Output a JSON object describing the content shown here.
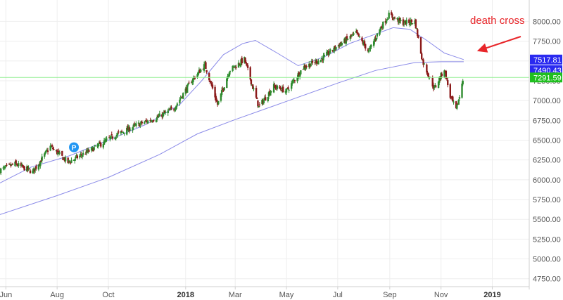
{
  "chart_data": {
    "type": "candlestick",
    "title": "",
    "xlabel": "",
    "ylabel": "",
    "x_range": [
      "2017-05-25",
      "2019-02-14"
    ],
    "ylim": [
      4650,
      8270
    ],
    "y_ticks": [
      4750,
      5000,
      5250,
      5500,
      5750,
      6000,
      6250,
      6500,
      6750,
      7000,
      7250,
      7500,
      7750,
      8000
    ],
    "y_tick_labels": [
      "4750.00",
      "5000.00",
      "5250.00",
      "5500.00",
      "5750.00",
      "6000.00",
      "6250.00",
      "6500.00",
      "6750.00",
      "7000.00",
      "7250.00",
      "7500.00",
      "7750.00",
      "8000.00"
    ],
    "x_ticks": [
      {
        "date": "2017-06-01",
        "label": "Jun",
        "bold": false
      },
      {
        "date": "2017-08-01",
        "label": "Aug",
        "bold": false
      },
      {
        "date": "2017-10-01",
        "label": "Oct",
        "bold": false
      },
      {
        "date": "2018-01-01",
        "label": "2018",
        "bold": true
      },
      {
        "date": "2018-03-01",
        "label": "Mar",
        "bold": false
      },
      {
        "date": "2018-05-01",
        "label": "May",
        "bold": false
      },
      {
        "date": "2018-07-01",
        "label": "Jul",
        "bold": false
      },
      {
        "date": "2018-09-01",
        "label": "Sep",
        "bold": false
      },
      {
        "date": "2018-11-01",
        "label": "Nov",
        "bold": false
      },
      {
        "date": "2019-01-01",
        "label": "2019",
        "bold": true
      }
    ],
    "price_anchors": [
      [
        "2017-05-25",
        6120
      ],
      [
        "2017-06-12",
        6200
      ],
      [
        "2017-07-03",
        6100
      ],
      [
        "2017-07-24",
        6420
      ],
      [
        "2017-08-14",
        6220
      ],
      [
        "2017-09-11",
        6380
      ],
      [
        "2017-10-09",
        6560
      ],
      [
        "2017-11-06",
        6700
      ],
      [
        "2017-11-27",
        6780
      ],
      [
        "2017-12-18",
        6900
      ],
      [
        "2018-01-08",
        7250
      ],
      [
        "2018-01-24",
        7450
      ],
      [
        "2018-02-08",
        6950
      ],
      [
        "2018-02-22",
        7380
      ],
      [
        "2018-03-12",
        7520
      ],
      [
        "2018-03-29",
        6920
      ],
      [
        "2018-04-16",
        7180
      ],
      [
        "2018-05-01",
        7120
      ],
      [
        "2018-05-21",
        7420
      ],
      [
        "2018-06-11",
        7520
      ],
      [
        "2018-07-02",
        7700
      ],
      [
        "2018-07-23",
        7850
      ],
      [
        "2018-08-07",
        7620
      ],
      [
        "2018-08-20",
        7900
      ],
      [
        "2018-08-31",
        8080
      ],
      [
        "2018-09-17",
        7980
      ],
      [
        "2018-10-01",
        8000
      ],
      [
        "2018-10-10",
        7500
      ],
      [
        "2018-10-24",
        7150
      ],
      [
        "2018-11-05",
        7400
      ],
      [
        "2018-11-12",
        7050
      ],
      [
        "2018-11-19",
        6880
      ],
      [
        "2018-11-23",
        7050
      ],
      [
        "2018-11-27",
        7280
      ]
    ],
    "series": [
      {
        "name": "",
        "type": "line",
        "color": "#8a8ae8",
        "points": [
          [
            "2017-05-25",
            5960
          ],
          [
            "2017-07-01",
            6160
          ],
          [
            "2017-08-15",
            6300
          ],
          [
            "2017-10-01",
            6500
          ],
          [
            "2017-11-15",
            6700
          ],
          [
            "2017-12-25",
            6950
          ],
          [
            "2018-01-20",
            7250
          ],
          [
            "2018-02-15",
            7580
          ],
          [
            "2018-03-10",
            7720
          ],
          [
            "2018-03-25",
            7760
          ],
          [
            "2018-04-20",
            7600
          ],
          [
            "2018-05-15",
            7440
          ],
          [
            "2018-06-15",
            7550
          ],
          [
            "2018-07-15",
            7720
          ],
          [
            "2018-08-10",
            7820
          ],
          [
            "2018-09-05",
            7920
          ],
          [
            "2018-09-25",
            7900
          ],
          [
            "2018-10-15",
            7760
          ],
          [
            "2018-11-05",
            7600
          ],
          [
            "2018-11-28",
            7517.81
          ]
        ]
      },
      {
        "name": "",
        "type": "line",
        "color": "#8a8ae8",
        "points": [
          [
            "2017-05-25",
            5560
          ],
          [
            "2017-08-01",
            5800
          ],
          [
            "2017-10-01",
            6030
          ],
          [
            "2017-12-01",
            6320
          ],
          [
            "2018-01-15",
            6580
          ],
          [
            "2018-03-01",
            6760
          ],
          [
            "2018-05-01",
            6990
          ],
          [
            "2018-07-01",
            7220
          ],
          [
            "2018-08-15",
            7380
          ],
          [
            "2018-10-01",
            7480
          ],
          [
            "2018-11-01",
            7490
          ],
          [
            "2018-11-28",
            7490.43
          ]
        ]
      }
    ],
    "horizontal_line": {
      "value": 7291.59,
      "color": "#90ee90"
    },
    "price_tags": [
      {
        "value": 7517.81,
        "label": "7517.81",
        "color": "#2a2af0"
      },
      {
        "value": 7490.43,
        "label": "7490.43",
        "color": "#2a2af0"
      },
      {
        "value": 7291.59,
        "label": "7291.59",
        "color": "#1fbf1f"
      }
    ],
    "annotation": {
      "text": "death cross",
      "color": "#e8262a"
    },
    "marker": {
      "label": "P",
      "date": "2017-08-21",
      "value": 6410,
      "color": "#2196f3"
    },
    "colors": {
      "up": "#2e8b2e",
      "down": "#8b1a1a",
      "grid": "#eeeeee",
      "axis": "#cfcfcf"
    },
    "grid": true,
    "legend": "none"
  }
}
